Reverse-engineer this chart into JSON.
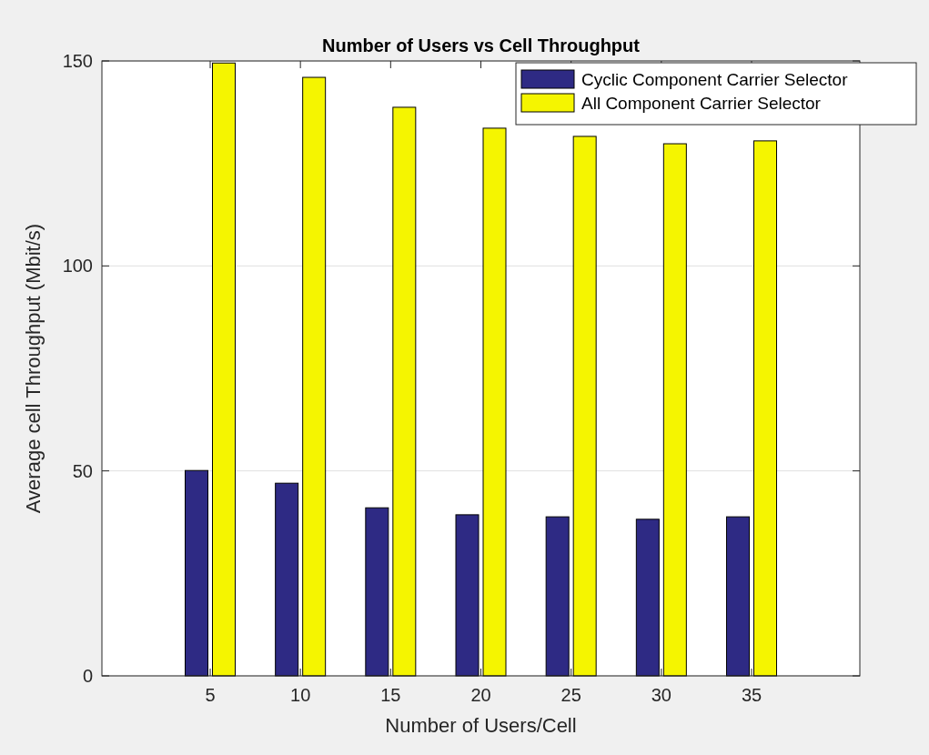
{
  "chart_data": {
    "type": "bar",
    "title": "Number of Users vs Cell Throughput",
    "xlabel": "Number of Users/Cell",
    "ylabel": "Average cell Throughput (Mbit/s)",
    "categories": [
      "5",
      "10",
      "15",
      "20",
      "25",
      "30",
      "35"
    ],
    "series": [
      {
        "name": "Cyclic Component Carrier Selector",
        "color": "#2e2a84",
        "values": [
          50.1,
          47.0,
          41.0,
          39.3,
          38.8,
          38.2,
          38.8
        ]
      },
      {
        "name": "All Component Carrier Selector",
        "color": "#f5f500",
        "values": [
          149.5,
          146.0,
          138.7,
          133.6,
          131.6,
          129.8,
          130.5
        ]
      }
    ],
    "ylim": [
      0,
      150
    ],
    "yticks": [
      0,
      50,
      100,
      150
    ],
    "grid": "y",
    "legend": "top right"
  }
}
